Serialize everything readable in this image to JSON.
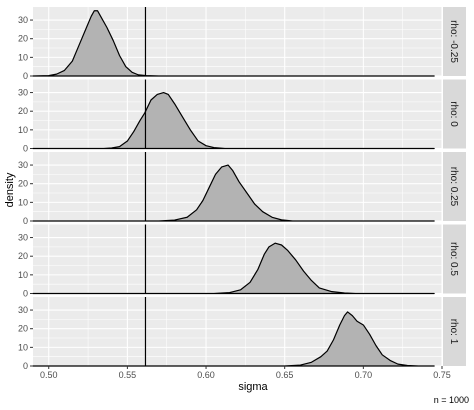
{
  "chart_data": {
    "type": "area",
    "xlabel": "sigma",
    "ylabel": "density",
    "caption": "n = 1000",
    "xlim": [
      0.49,
      0.75
    ],
    "ylim": [
      0,
      37
    ],
    "x_ticks": [
      0.5,
      0.55,
      0.6,
      0.65,
      0.7,
      0.75
    ],
    "x_tick_labels": [
      "0.50",
      "0.55",
      "0.60",
      "0.65",
      "0.70",
      "0.75"
    ],
    "y_ticks": [
      0,
      10,
      20,
      30
    ],
    "y_tick_labels": [
      "0",
      "10",
      "20",
      "30"
    ],
    "grid": true,
    "reference_line_x": 0.5615,
    "facets": [
      {
        "label": "rho: -0.25",
        "points": [
          [
            0.49,
            0
          ],
          [
            0.5,
            0.2
          ],
          [
            0.505,
            1
          ],
          [
            0.51,
            3
          ],
          [
            0.515,
            8
          ],
          [
            0.52,
            18
          ],
          [
            0.524,
            26
          ],
          [
            0.527,
            32
          ],
          [
            0.529,
            35
          ],
          [
            0.531,
            35
          ],
          [
            0.533,
            32
          ],
          [
            0.537,
            26
          ],
          [
            0.541,
            19
          ],
          [
            0.545,
            11
          ],
          [
            0.549,
            5
          ],
          [
            0.553,
            2
          ],
          [
            0.557,
            0.6
          ],
          [
            0.562,
            0.2
          ],
          [
            0.57,
            0
          ],
          [
            0.745,
            0
          ]
        ]
      },
      {
        "label": "rho: 0",
        "points": [
          [
            0.49,
            0
          ],
          [
            0.535,
            0
          ],
          [
            0.54,
            0.3
          ],
          [
            0.545,
            1
          ],
          [
            0.55,
            4
          ],
          [
            0.554,
            9
          ],
          [
            0.558,
            15
          ],
          [
            0.561,
            19
          ],
          [
            0.565,
            26
          ],
          [
            0.569,
            29
          ],
          [
            0.573,
            30
          ],
          [
            0.576,
            29
          ],
          [
            0.58,
            24
          ],
          [
            0.585,
            17
          ],
          [
            0.59,
            10
          ],
          [
            0.595,
            4
          ],
          [
            0.6,
            1.5
          ],
          [
            0.605,
            0.5
          ],
          [
            0.612,
            0
          ],
          [
            0.745,
            0
          ]
        ]
      },
      {
        "label": "rho: 0.25",
        "points": [
          [
            0.49,
            0
          ],
          [
            0.57,
            0
          ],
          [
            0.58,
            0.5
          ],
          [
            0.588,
            2
          ],
          [
            0.594,
            6
          ],
          [
            0.598,
            11
          ],
          [
            0.602,
            18
          ],
          [
            0.606,
            25
          ],
          [
            0.61,
            29
          ],
          [
            0.614,
            30
          ],
          [
            0.617,
            27
          ],
          [
            0.621,
            21
          ],
          [
            0.626,
            15
          ],
          [
            0.631,
            9
          ],
          [
            0.636,
            5
          ],
          [
            0.642,
            2
          ],
          [
            0.648,
            0.6
          ],
          [
            0.655,
            0
          ],
          [
            0.745,
            0
          ]
        ]
      },
      {
        "label": "rho: 0.5",
        "points": [
          [
            0.49,
            0
          ],
          [
            0.605,
            0
          ],
          [
            0.615,
            0.5
          ],
          [
            0.622,
            2
          ],
          [
            0.628,
            6
          ],
          [
            0.633,
            13
          ],
          [
            0.637,
            21
          ],
          [
            0.64,
            25
          ],
          [
            0.644,
            27
          ],
          [
            0.648,
            26
          ],
          [
            0.652,
            23
          ],
          [
            0.657,
            18
          ],
          [
            0.662,
            12
          ],
          [
            0.667,
            7
          ],
          [
            0.672,
            3
          ],
          [
            0.68,
            1
          ],
          [
            0.688,
            0.3
          ],
          [
            0.695,
            0
          ],
          [
            0.745,
            0
          ]
        ]
      },
      {
        "label": "rho: 1",
        "points": [
          [
            0.49,
            0
          ],
          [
            0.65,
            0
          ],
          [
            0.66,
            0.5
          ],
          [
            0.667,
            2
          ],
          [
            0.673,
            5
          ],
          [
            0.677,
            8
          ],
          [
            0.681,
            14
          ],
          [
            0.685,
            22
          ],
          [
            0.688,
            27
          ],
          [
            0.69,
            29
          ],
          [
            0.693,
            27
          ],
          [
            0.696,
            24
          ],
          [
            0.7,
            22
          ],
          [
            0.704,
            17
          ],
          [
            0.708,
            11
          ],
          [
            0.712,
            6
          ],
          [
            0.717,
            3
          ],
          [
            0.722,
            1
          ],
          [
            0.728,
            0.3
          ],
          [
            0.735,
            0
          ],
          [
            0.745,
            0
          ]
        ]
      }
    ]
  }
}
